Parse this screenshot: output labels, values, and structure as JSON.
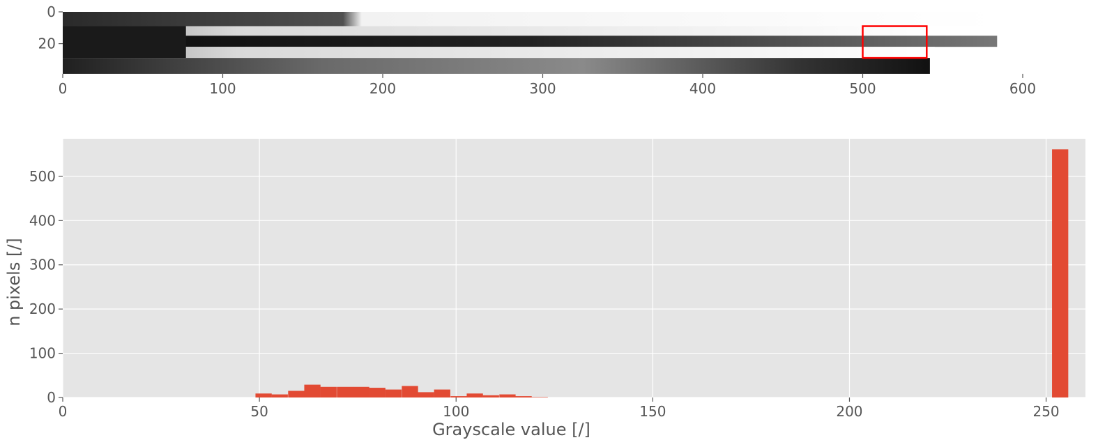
{
  "chart_data": [
    {
      "type": "image",
      "title": "",
      "xlabel": "",
      "ylabel": "",
      "x_ticks": [
        0,
        100,
        200,
        300,
        400,
        500,
        600
      ],
      "y_ticks": [
        0,
        20
      ],
      "xlim": [
        0,
        625
      ],
      "ylim": [
        39,
        0
      ],
      "image_extent": {
        "width": 584,
        "height": 39
      },
      "colormap": "gray",
      "bands": [
        {
          "y": [
            0,
            9
          ],
          "x_end": 584,
          "shade": "dark-top",
          "value": 60
        },
        {
          "y": [
            9,
            15
          ],
          "x_end": 545,
          "shade": "light",
          "value": 210
        },
        {
          "y": [
            15,
            22
          ],
          "x_end": 584,
          "shade": "dark",
          "value": 30
        },
        {
          "y": [
            22,
            29
          ],
          "x_end": 545,
          "shade": "light",
          "value": 225
        },
        {
          "y": [
            29,
            39
          ],
          "x_end": 542,
          "shade": "dark",
          "value": 45
        }
      ],
      "highlight_box": {
        "x": [
          500,
          540
        ],
        "y": [
          9,
          29
        ],
        "color": "#ff0000"
      }
    },
    {
      "type": "bar",
      "title": "",
      "xlabel": "Grayscale value [/]",
      "ylabel": "n pixels [/]",
      "xlim": [
        0,
        260
      ],
      "ylim": [
        0,
        585
      ],
      "x_ticks": [
        0,
        50,
        100,
        150,
        200,
        250
      ],
      "y_ticks": [
        0,
        100,
        200,
        300,
        400,
        500
      ],
      "grid": true,
      "bar_color": "#E24A33",
      "background": "#E5E5E5",
      "bin_width": 4.13,
      "bins": [
        {
          "x": 49.0,
          "count": 9
        },
        {
          "x": 53.1,
          "count": 7
        },
        {
          "x": 57.3,
          "count": 15
        },
        {
          "x": 61.4,
          "count": 29
        },
        {
          "x": 65.5,
          "count": 24
        },
        {
          "x": 69.7,
          "count": 24
        },
        {
          "x": 73.8,
          "count": 24
        },
        {
          "x": 77.9,
          "count": 22
        },
        {
          "x": 82.0,
          "count": 18
        },
        {
          "x": 86.2,
          "count": 26
        },
        {
          "x": 90.3,
          "count": 12
        },
        {
          "x": 94.4,
          "count": 18
        },
        {
          "x": 98.6,
          "count": 3
        },
        {
          "x": 102.7,
          "count": 9
        },
        {
          "x": 106.8,
          "count": 5
        },
        {
          "x": 111.0,
          "count": 7
        },
        {
          "x": 115.1,
          "count": 3
        },
        {
          "x": 119.2,
          "count": 1
        },
        {
          "x": 251.5,
          "count": 561
        }
      ]
    }
  ]
}
